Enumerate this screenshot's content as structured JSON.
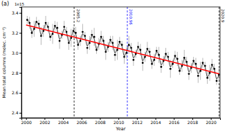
{
  "chart_data": {
    "type": "scatter",
    "panel_label": "(a)",
    "offset_label": "1e15",
    "x_label": "Year",
    "y_label": "Mean total columns (molec. cm⁻²)",
    "xlim": [
      1999.5,
      2021.0
    ],
    "ylim": [
      2.35,
      3.46
    ],
    "xticks": [
      2000,
      2002,
      2004,
      2006,
      2008,
      2010,
      2012,
      2014,
      2016,
      2018,
      2020
    ],
    "yticks": [
      2.4,
      2.6,
      2.8,
      {
        "value": 3.0,
        "label": "3.0"
      },
      3.2,
      3.4
    ],
    "grid": false,
    "series": [
      {
        "type": "scatter",
        "color": "#000000",
        "marker": "circle",
        "x": [
          2000.125,
          2000.375,
          2000.625,
          2000.875,
          2001.125,
          2001.375,
          2001.625,
          2001.875,
          2002.125,
          2002.375,
          2002.625,
          2002.875,
          2003.125,
          2003.375,
          2003.625,
          2003.875,
          2004.125,
          2004.375,
          2004.625,
          2004.875,
          2005.125,
          2005.375,
          2005.625,
          2005.875,
          2006.125,
          2006.375,
          2006.625,
          2006.875,
          2007.125,
          2007.375,
          2007.625,
          2007.875,
          2008.125,
          2008.375,
          2008.625,
          2008.875,
          2009.125,
          2009.375,
          2009.625,
          2009.875,
          2010.125,
          2010.375,
          2010.625,
          2010.875,
          2011.125,
          2011.375,
          2011.625,
          2011.875,
          2012.125,
          2012.375,
          2012.625,
          2012.875,
          2013.125,
          2013.375,
          2013.625,
          2013.875,
          2014.125,
          2014.375,
          2014.625,
          2014.875,
          2015.125,
          2015.375,
          2015.625,
          2015.875,
          2016.125,
          2016.375,
          2016.625,
          2016.875,
          2017.125,
          2017.375,
          2017.625,
          2017.875,
          2018.125,
          2018.375,
          2018.625,
          2018.875,
          2019.125,
          2019.375,
          2019.625,
          2019.875,
          2020.125,
          2020.375,
          2020.625,
          2020.875
        ],
        "values": [
          3.33,
          3.3,
          3.2,
          3.24,
          3.31,
          3.29,
          3.17,
          3.22,
          3.3,
          3.26,
          3.16,
          3.19,
          3.27,
          3.25,
          3.12,
          3.18,
          3.26,
          3.21,
          3.1,
          3.15,
          3.22,
          3.2,
          3.08,
          3.12,
          3.21,
          3.17,
          3.05,
          3.1,
          3.18,
          3.16,
          3.03,
          3.09,
          3.16,
          3.12,
          3.01,
          3.06,
          3.13,
          3.1,
          2.98,
          3.03,
          3.11,
          3.08,
          2.96,
          3.0,
          3.08,
          3.05,
          2.93,
          2.99,
          3.06,
          3.03,
          2.9,
          2.96,
          3.04,
          3.01,
          2.89,
          2.93,
          3.02,
          2.98,
          2.86,
          2.92,
          2.99,
          2.96,
          2.84,
          2.89,
          2.97,
          2.94,
          2.82,
          2.87,
          2.95,
          2.91,
          2.79,
          2.85,
          2.92,
          2.89,
          2.77,
          2.82,
          2.9,
          2.87,
          2.75,
          2.8,
          2.88,
          2.84,
          2.72,
          2.78
        ],
        "errors": [
          0.04,
          0.06,
          0.05,
          0.08,
          0.05,
          0.04,
          0.09,
          0.06,
          0.07,
          0.05,
          0.04,
          0.1,
          0.05,
          0.06,
          0.08,
          0.04,
          0.06,
          0.05,
          0.07,
          0.09,
          0.04,
          0.06,
          0.05,
          0.05,
          0.08,
          0.04,
          0.06,
          0.07,
          0.05,
          0.09,
          0.04,
          0.06,
          0.06,
          0.05,
          0.08,
          0.05,
          0.04,
          0.07,
          0.06,
          0.1,
          0.05,
          0.04,
          0.07,
          0.06,
          0.09,
          0.05,
          0.06,
          0.04,
          0.05,
          0.06,
          0.08,
          0.05,
          0.07,
          0.04,
          0.05,
          0.06,
          0.04,
          0.08,
          0.06,
          0.05,
          0.06,
          0.05,
          0.09,
          0.04,
          0.05,
          0.07,
          0.04,
          0.06,
          0.08,
          0.05,
          0.06,
          0.05,
          0.04,
          0.06,
          0.07,
          0.09,
          0.05,
          0.04,
          0.06,
          0.08,
          0.06,
          0.05,
          0.04,
          0.07
        ]
      },
      {
        "type": "line",
        "color": "#000000",
        "line_style": "solid",
        "x": [
          2000.125,
          2000.375,
          2000.625,
          2000.875,
          2001.125,
          2001.375,
          2001.625,
          2001.875,
          2002.125,
          2002.375,
          2002.625,
          2002.875,
          2003.125,
          2003.375,
          2003.625,
          2003.875,
          2004.125,
          2004.375,
          2004.625,
          2004.875,
          2005.125,
          2005.375,
          2005.625,
          2005.875,
          2006.125,
          2006.375,
          2006.625,
          2006.875,
          2007.125,
          2007.375,
          2007.625,
          2007.875,
          2008.125,
          2008.375,
          2008.625,
          2008.875,
          2009.125,
          2009.375,
          2009.625,
          2009.875,
          2010.125,
          2010.375,
          2010.625,
          2010.875,
          2011.125,
          2011.375,
          2011.625,
          2011.875,
          2012.125,
          2012.375,
          2012.625,
          2012.875,
          2013.125,
          2013.375,
          2013.625,
          2013.875,
          2014.125,
          2014.375,
          2014.625,
          2014.875,
          2015.125,
          2015.375,
          2015.625,
          2015.875,
          2016.125,
          2016.375,
          2016.625,
          2016.875,
          2017.125,
          2017.375,
          2017.625,
          2017.875,
          2018.125,
          2018.375,
          2018.625,
          2018.875,
          2019.125,
          2019.375,
          2019.625,
          2019.875,
          2020.125,
          2020.375,
          2020.625,
          2020.875
        ],
        "values": [
          3.33,
          3.3,
          3.21,
          3.24,
          3.31,
          3.28,
          3.18,
          3.22,
          3.29,
          3.26,
          3.16,
          3.2,
          3.26,
          3.23,
          3.14,
          3.17,
          3.24,
          3.21,
          3.11,
          3.15,
          3.22,
          3.19,
          3.09,
          3.13,
          3.19,
          3.16,
          3.07,
          3.11,
          3.17,
          3.14,
          3.04,
          3.08,
          3.15,
          3.12,
          3.02,
          3.06,
          3.12,
          3.09,
          3.0,
          3.04,
          3.1,
          3.07,
          2.97,
          3.01,
          3.08,
          3.05,
          2.95,
          2.99,
          3.05,
          3.02,
          2.92,
          2.97,
          3.03,
          3.0,
          2.9,
          2.94,
          3.01,
          2.98,
          2.88,
          2.92,
          2.98,
          2.95,
          2.86,
          2.9,
          2.96,
          2.93,
          2.83,
          2.87,
          2.94,
          2.91,
          2.81,
          2.85,
          2.91,
          2.88,
          2.79,
          2.83,
          2.89,
          2.86,
          2.76,
          2.8,
          2.87,
          2.84,
          2.74,
          2.78
        ]
      },
      {
        "type": "line",
        "color": "#ff0000",
        "line_style": "solid",
        "x": [
          2000.0,
          2020.9
        ],
        "values": [
          3.28,
          2.79
        ]
      }
    ],
    "annotations": [
      {
        "x": 2005.2,
        "text": "2005.2",
        "color": "#000000",
        "line_style": "dashed"
      },
      {
        "x": 2010.96,
        "text": "2010.96",
        "color": "#0000ff",
        "line_style": "dashed"
      },
      {
        "x": 2020.9,
        "text": "2020.9",
        "color": "#000000",
        "line_style": "dashed"
      }
    ]
  }
}
